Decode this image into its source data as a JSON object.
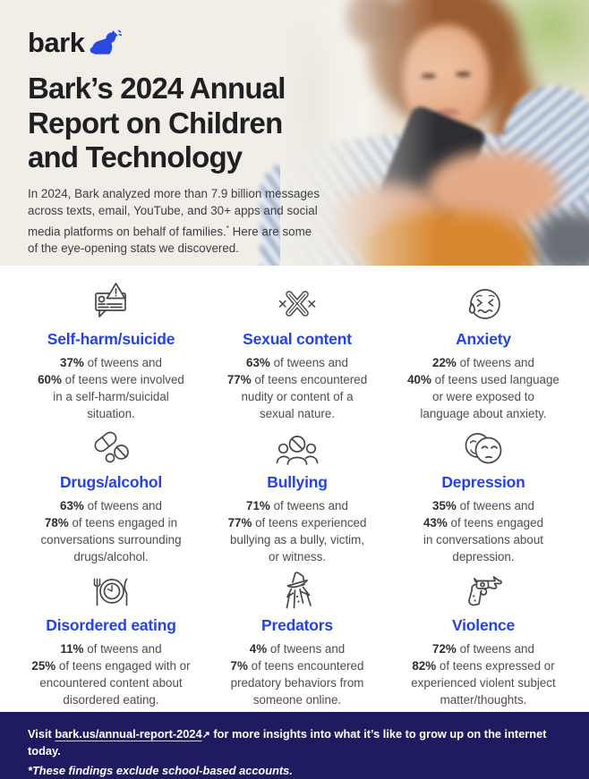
{
  "brand": {
    "logo_text": "bark",
    "accent_blue": "#2443e6",
    "footer_navy": "#1f1b61",
    "header_beige": "#f1eee8"
  },
  "header": {
    "title_lines": [
      "Bark’s 2024 Annual",
      "Report on Children",
      "and Technology"
    ],
    "intro_part1": "In 2024, Bark analyzed more than 7.9 billion messages across texts, email, YouTube, and 30+ apps and social media platforms on behalf of families.",
    "intro_asterisk": "*",
    "intro_part2": " Here are some of the eye-opening stats we discovered.",
    "photo_description": "teen girl looking at smartphone"
  },
  "cards": [
    {
      "id": "self-harm",
      "icon": "alert-message-icon",
      "title": "Self-harm/suicide",
      "lines": [
        [
          {
            "b": "37%"
          },
          {
            "t": " of tweens and"
          }
        ],
        [
          {
            "b": "60%"
          },
          {
            "t": " of teens were involved"
          }
        ],
        [
          {
            "t": "in a self-harm/suicidal"
          }
        ],
        [
          {
            "t": "situation."
          }
        ]
      ]
    },
    {
      "id": "sexual-content",
      "icon": "xxx-icon",
      "title": "Sexual content",
      "lines": [
        [
          {
            "b": "63%"
          },
          {
            "t": " of tweens and"
          }
        ],
        [
          {
            "b": "77%"
          },
          {
            "t": " of teens encountered"
          }
        ],
        [
          {
            "t": "nudity or content of a"
          }
        ],
        [
          {
            "t": "sexual nature."
          }
        ]
      ]
    },
    {
      "id": "anxiety",
      "icon": "anxious-face-icon",
      "title": "Anxiety",
      "lines": [
        [
          {
            "b": "22%"
          },
          {
            "t": " of tweens and"
          }
        ],
        [
          {
            "b": "40%"
          },
          {
            "t": " of teens used language"
          }
        ],
        [
          {
            "t": "or were exposed to"
          }
        ],
        [
          {
            "t": "language about anxiety."
          }
        ]
      ]
    },
    {
      "id": "drugs-alcohol",
      "icon": "pills-icon",
      "title": "Drugs/alcohol",
      "lines": [
        [
          {
            "b": "63%"
          },
          {
            "t": " of tweens and"
          }
        ],
        [
          {
            "b": "78%"
          },
          {
            "t": " of teens engaged in"
          }
        ],
        [
          {
            "t": "conversations surrounding"
          }
        ],
        [
          {
            "t": "drugs/alcohol."
          }
        ]
      ]
    },
    {
      "id": "bullying",
      "icon": "bullying-people-icon",
      "title": "Bullying",
      "lines": [
        [
          {
            "b": "71%"
          },
          {
            "t": " of tweens and"
          }
        ],
        [
          {
            "b": "77%"
          },
          {
            "t": " of teens experienced"
          }
        ],
        [
          {
            "t": "bullying as a bully, victim,"
          }
        ],
        [
          {
            "t": "or witness."
          }
        ]
      ]
    },
    {
      "id": "depression",
      "icon": "sad-masks-icon",
      "title": "Depression",
      "lines": [
        [
          {
            "b": "35%"
          },
          {
            "t": " of tweens and"
          }
        ],
        [
          {
            "b": "43%"
          },
          {
            "t": " of teens engaged"
          }
        ],
        [
          {
            "t": "in conversations about"
          }
        ],
        [
          {
            "t": "depression."
          }
        ]
      ]
    },
    {
      "id": "disordered-eating",
      "icon": "plate-clock-icon",
      "title": "Disordered eating",
      "lines": [
        [
          {
            "b": "11%"
          },
          {
            "t": " of tweens and"
          }
        ],
        [
          {
            "b": "25%"
          },
          {
            "t": " of teens engaged with or"
          }
        ],
        [
          {
            "t": "encountered content about"
          }
        ],
        [
          {
            "t": "disordered eating."
          }
        ]
      ]
    },
    {
      "id": "predators",
      "icon": "shady-figure-icon",
      "title": "Predators",
      "lines": [
        [
          {
            "b": "4%"
          },
          {
            "t": " of tweens and"
          }
        ],
        [
          {
            "b": "7%"
          },
          {
            "t": " of teens encountered"
          }
        ],
        [
          {
            "t": "predatory behaviors from"
          }
        ],
        [
          {
            "t": "someone online."
          }
        ]
      ]
    },
    {
      "id": "violence",
      "icon": "revolver-icon",
      "title": "Violence",
      "lines": [
        [
          {
            "b": "72%"
          },
          {
            "t": " of tweens and"
          }
        ],
        [
          {
            "b": "82%"
          },
          {
            "t": " of teens expressed or"
          }
        ],
        [
          {
            "t": "experienced violent subject"
          }
        ],
        [
          {
            "t": "matter/thoughts."
          }
        ]
      ]
    }
  ],
  "footer": {
    "visit_prefix": "Visit ",
    "link_text": "bark.us/annual-report-2024",
    "link_arrow": "↗",
    "visit_suffix": " for more insights into what it’s like to grow up on the internet today.",
    "footnote": "*These findings exclude school-based accounts."
  }
}
